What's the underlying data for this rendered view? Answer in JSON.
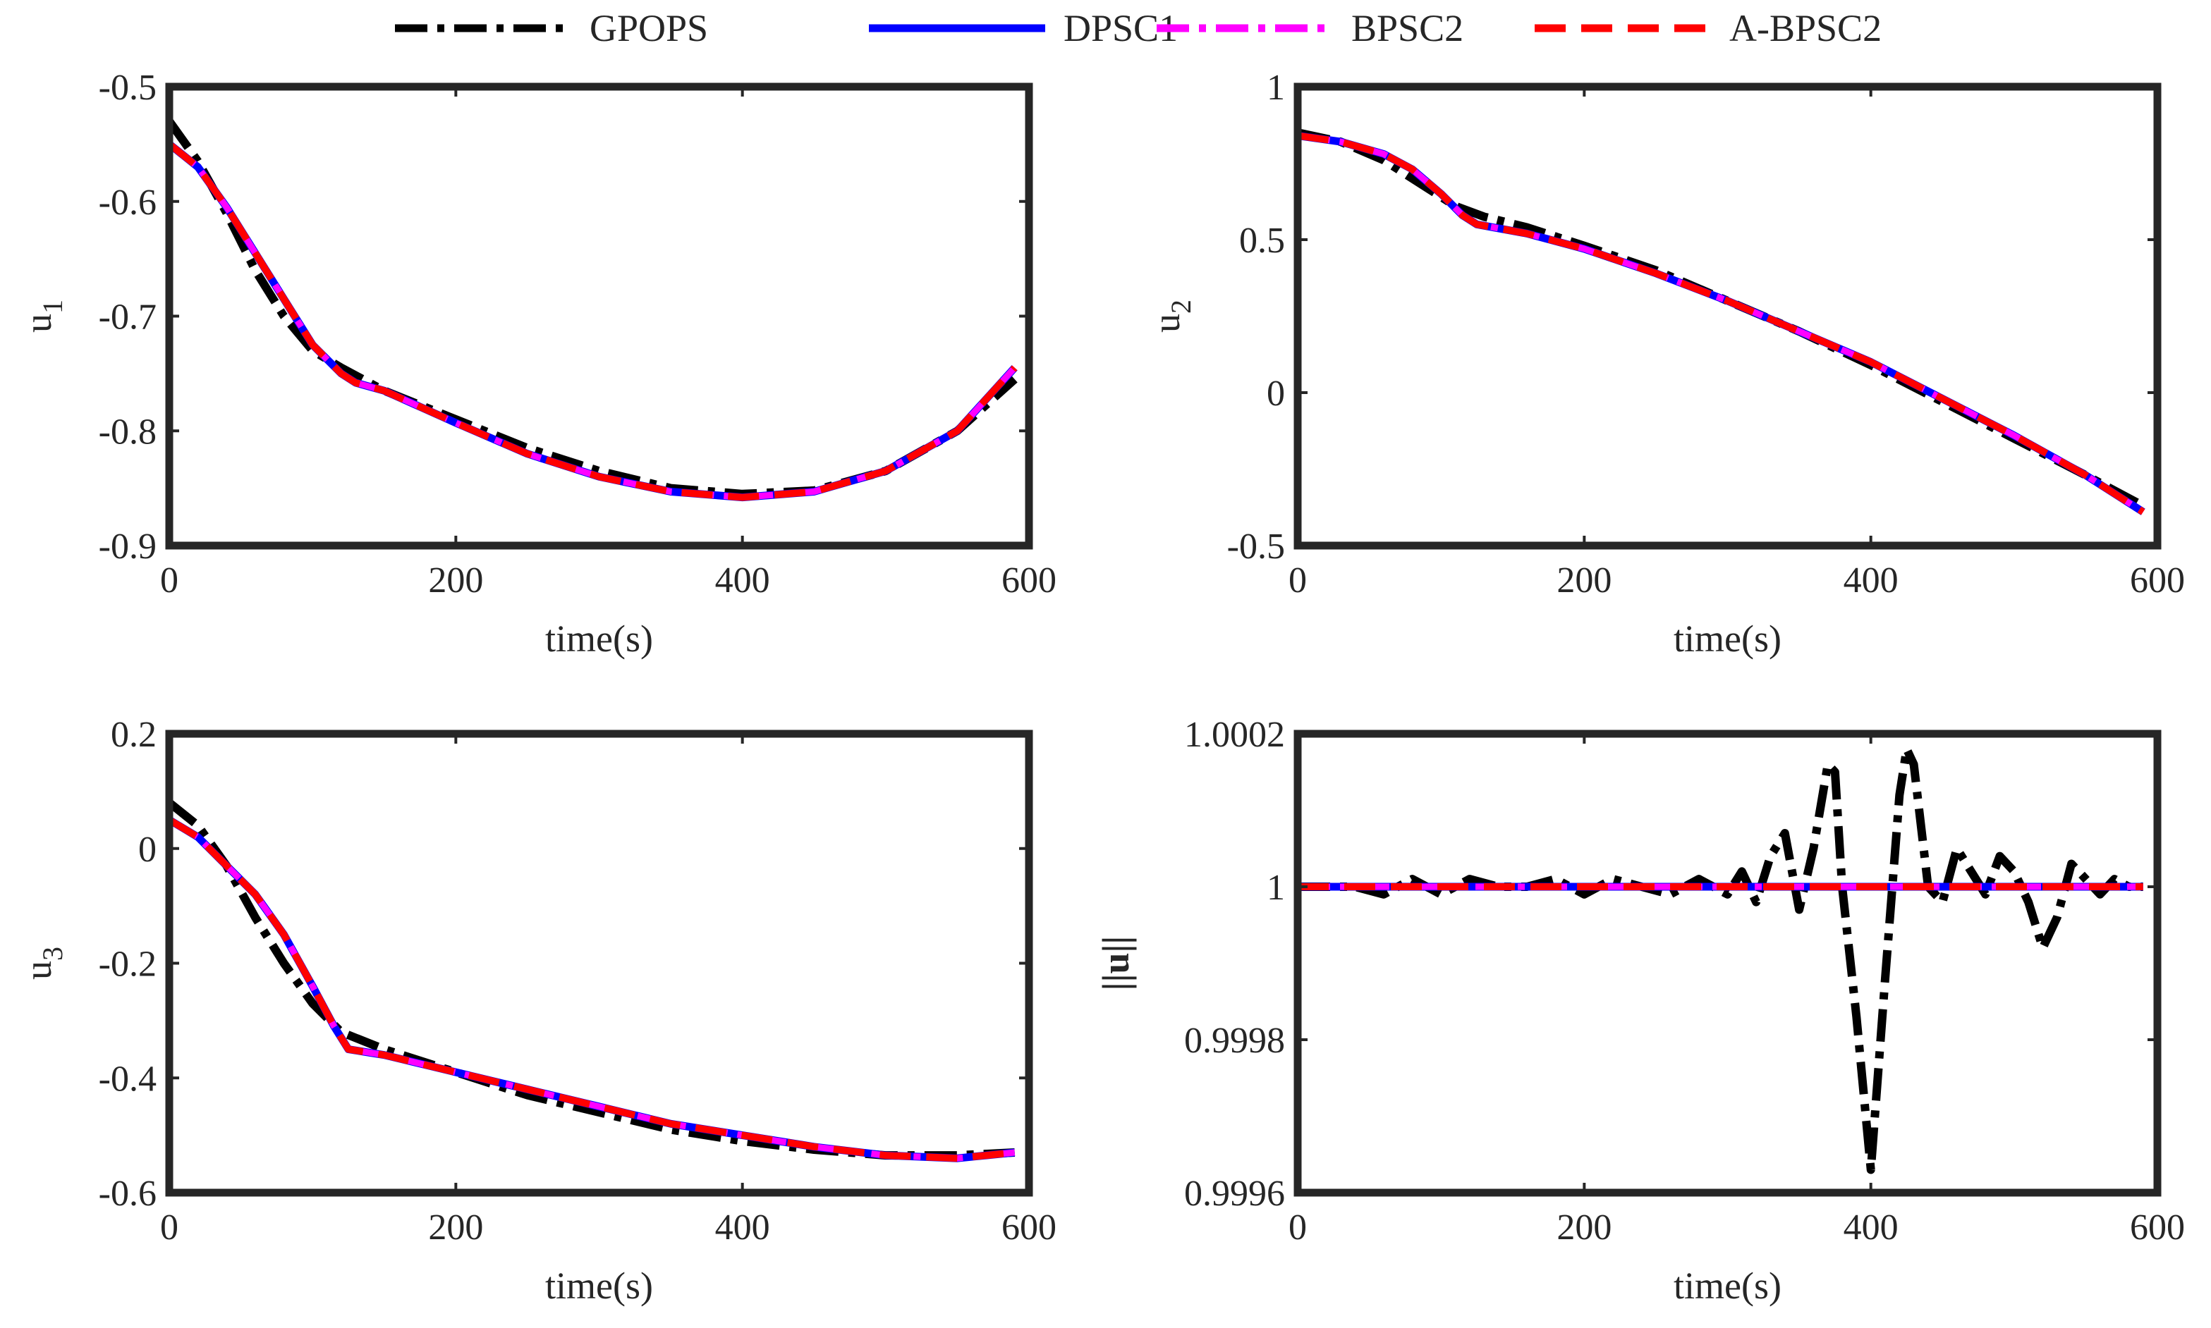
{
  "legend": {
    "entries": [
      {
        "name": "GPOPS",
        "color": "#000000",
        "dash": "dashdot"
      },
      {
        "name": "DPSC1",
        "color": "#0000ff",
        "dash": "solid"
      },
      {
        "name": "BPSC2",
        "color": "#ff00ff",
        "dash": "dashdot"
      },
      {
        "name": "A-BPSC2",
        "color": "#ff0000",
        "dash": "dashed"
      }
    ]
  },
  "chart_data": [
    {
      "type": "line",
      "id": "u1",
      "title": "",
      "xlabel": "time(s)",
      "ylabel": "u",
      "ylabel_sub": "1",
      "xlim": [
        0,
        600
      ],
      "ylim": [
        -0.9,
        -0.5
      ],
      "xticks": [
        0,
        200,
        400,
        600
      ],
      "xtick_labels": [
        "0",
        "200",
        "400",
        "600"
      ],
      "yticks": [
        -0.9,
        -0.8,
        -0.7,
        -0.6,
        -0.5
      ],
      "ytick_labels": [
        "-0.9",
        "-0.8",
        "-0.7",
        "-0.6",
        "-0.5"
      ],
      "series": [
        {
          "name": "GPOPS",
          "x": [
            0,
            20,
            40,
            60,
            80,
            100,
            120,
            150,
            200,
            250,
            300,
            350,
            400,
            450,
            500,
            550,
            590
          ],
          "y": [
            -0.53,
            -0.565,
            -0.61,
            -0.66,
            -0.7,
            -0.73,
            -0.745,
            -0.765,
            -0.79,
            -0.815,
            -0.835,
            -0.85,
            -0.855,
            -0.852,
            -0.835,
            -0.8,
            -0.755
          ]
        },
        {
          "name": "DPSC1",
          "x": [
            0,
            20,
            40,
            60,
            80,
            100,
            120,
            130,
            150,
            200,
            250,
            300,
            350,
            400,
            450,
            500,
            550,
            590
          ],
          "y": [
            -0.55,
            -0.57,
            -0.605,
            -0.645,
            -0.685,
            -0.725,
            -0.75,
            -0.758,
            -0.765,
            -0.793,
            -0.82,
            -0.84,
            -0.853,
            -0.858,
            -0.853,
            -0.835,
            -0.8,
            -0.745
          ]
        },
        {
          "name": "BPSC2",
          "x": [
            0,
            20,
            40,
            60,
            80,
            100,
            120,
            130,
            150,
            200,
            250,
            300,
            350,
            400,
            450,
            500,
            550,
            590
          ],
          "y": [
            -0.55,
            -0.57,
            -0.605,
            -0.645,
            -0.685,
            -0.725,
            -0.75,
            -0.758,
            -0.765,
            -0.793,
            -0.82,
            -0.84,
            -0.853,
            -0.858,
            -0.853,
            -0.835,
            -0.8,
            -0.745
          ]
        },
        {
          "name": "A-BPSC2",
          "x": [
            0,
            20,
            40,
            60,
            80,
            100,
            120,
            130,
            150,
            200,
            250,
            300,
            350,
            400,
            450,
            500,
            550,
            590
          ],
          "y": [
            -0.55,
            -0.57,
            -0.605,
            -0.645,
            -0.685,
            -0.725,
            -0.75,
            -0.758,
            -0.765,
            -0.793,
            -0.82,
            -0.84,
            -0.853,
            -0.858,
            -0.853,
            -0.835,
            -0.8,
            -0.745
          ]
        }
      ]
    },
    {
      "type": "line",
      "id": "u2",
      "title": "",
      "xlabel": "time(s)",
      "ylabel": "u",
      "ylabel_sub": "2",
      "xlim": [
        0,
        600
      ],
      "ylim": [
        -0.5,
        1
      ],
      "xticks": [
        0,
        200,
        400,
        600
      ],
      "xtick_labels": [
        "0",
        "200",
        "400",
        "600"
      ],
      "yticks": [
        -0.5,
        0,
        0.5,
        1
      ],
      "ytick_labels": [
        "-0.5",
        "0",
        "0.5",
        "1"
      ],
      "series": [
        {
          "name": "GPOPS",
          "x": [
            0,
            30,
            60,
            90,
            110,
            130,
            160,
            200,
            250,
            300,
            350,
            400,
            450,
            500,
            550,
            590
          ],
          "y": [
            0.85,
            0.82,
            0.76,
            0.67,
            0.61,
            0.575,
            0.54,
            0.48,
            0.4,
            0.3,
            0.2,
            0.09,
            -0.03,
            -0.15,
            -0.27,
            -0.37
          ]
        },
        {
          "name": "DPSC1",
          "x": [
            0,
            30,
            60,
            80,
            100,
            115,
            125,
            160,
            200,
            250,
            300,
            350,
            400,
            450,
            500,
            550,
            590
          ],
          "y": [
            0.84,
            0.82,
            0.78,
            0.73,
            0.65,
            0.58,
            0.55,
            0.52,
            0.47,
            0.39,
            0.3,
            0.2,
            0.1,
            -0.02,
            -0.14,
            -0.27,
            -0.39
          ]
        },
        {
          "name": "BPSC2",
          "x": [
            0,
            30,
            60,
            80,
            100,
            115,
            125,
            160,
            200,
            250,
            300,
            350,
            400,
            450,
            500,
            550,
            590
          ],
          "y": [
            0.84,
            0.82,
            0.78,
            0.73,
            0.65,
            0.58,
            0.55,
            0.52,
            0.47,
            0.39,
            0.3,
            0.2,
            0.1,
            -0.02,
            -0.14,
            -0.27,
            -0.39
          ]
        },
        {
          "name": "A-BPSC2",
          "x": [
            0,
            30,
            60,
            80,
            100,
            115,
            125,
            160,
            200,
            250,
            300,
            350,
            400,
            450,
            500,
            550,
            590
          ],
          "y": [
            0.84,
            0.82,
            0.78,
            0.73,
            0.65,
            0.58,
            0.55,
            0.52,
            0.47,
            0.39,
            0.3,
            0.2,
            0.1,
            -0.02,
            -0.14,
            -0.27,
            -0.39
          ]
        }
      ]
    },
    {
      "type": "line",
      "id": "u3",
      "title": "",
      "xlabel": "time(s)",
      "ylabel": "u",
      "ylabel_sub": "3",
      "xlim": [
        0,
        600
      ],
      "ylim": [
        -0.6,
        0.2
      ],
      "xticks": [
        0,
        200,
        400,
        600
      ],
      "xtick_labels": [
        "0",
        "200",
        "400",
        "600"
      ],
      "yticks": [
        -0.6,
        -0.4,
        -0.2,
        0,
        0.2
      ],
      "ytick_labels": [
        "-0.6",
        "-0.4",
        "-0.2",
        "0",
        "0.2"
      ],
      "series": [
        {
          "name": "GPOPS",
          "x": [
            0,
            20,
            40,
            60,
            80,
            100,
            120,
            150,
            200,
            250,
            300,
            350,
            400,
            450,
            500,
            550,
            590
          ],
          "y": [
            0.08,
            0.04,
            -0.03,
            -0.12,
            -0.2,
            -0.27,
            -0.32,
            -0.35,
            -0.39,
            -0.43,
            -0.46,
            -0.49,
            -0.51,
            -0.525,
            -0.535,
            -0.535,
            -0.53
          ]
        },
        {
          "name": "DPSC1",
          "x": [
            0,
            20,
            40,
            60,
            80,
            100,
            115,
            125,
            150,
            200,
            250,
            300,
            350,
            400,
            450,
            500,
            550,
            590
          ],
          "y": [
            0.05,
            0.02,
            -0.03,
            -0.08,
            -0.15,
            -0.24,
            -0.31,
            -0.35,
            -0.36,
            -0.39,
            -0.42,
            -0.45,
            -0.48,
            -0.5,
            -0.52,
            -0.535,
            -0.54,
            -0.53
          ]
        },
        {
          "name": "BPSC2",
          "x": [
            0,
            20,
            40,
            60,
            80,
            100,
            115,
            125,
            150,
            200,
            250,
            300,
            350,
            400,
            450,
            500,
            550,
            590
          ],
          "y": [
            0.05,
            0.02,
            -0.03,
            -0.08,
            -0.15,
            -0.24,
            -0.31,
            -0.35,
            -0.36,
            -0.39,
            -0.42,
            -0.45,
            -0.48,
            -0.5,
            -0.52,
            -0.535,
            -0.54,
            -0.53
          ]
        },
        {
          "name": "A-BPSC2",
          "x": [
            0,
            20,
            40,
            60,
            80,
            100,
            115,
            125,
            150,
            200,
            250,
            300,
            350,
            400,
            450,
            500,
            550,
            590
          ],
          "y": [
            0.05,
            0.02,
            -0.03,
            -0.08,
            -0.15,
            -0.24,
            -0.31,
            -0.35,
            -0.36,
            -0.39,
            -0.42,
            -0.45,
            -0.48,
            -0.5,
            -0.52,
            -0.535,
            -0.54,
            -0.53
          ]
        }
      ]
    },
    {
      "type": "line",
      "id": "unorm",
      "title": "",
      "xlabel": "time(s)",
      "ylabel": "||u||",
      "ylabel_sub": "",
      "xlim": [
        0,
        600
      ],
      "ylim": [
        0.9996,
        1.0002
      ],
      "xticks": [
        0,
        200,
        400,
        600
      ],
      "xtick_labels": [
        "0",
        "200",
        "400",
        "600"
      ],
      "yticks": [
        0.9996,
        0.9998,
        1,
        1.0002
      ],
      "ytick_labels": [
        "0.9996",
        "0.9998",
        "1",
        "1.0002"
      ],
      "series": [
        {
          "name": "GPOPS",
          "x": [
            0,
            20,
            40,
            60,
            80,
            100,
            120,
            140,
            160,
            180,
            200,
            220,
            240,
            260,
            280,
            300,
            310,
            320,
            330,
            340,
            350,
            360,
            370,
            375,
            380,
            390,
            400,
            410,
            420,
            425,
            430,
            440,
            450,
            460,
            470,
            480,
            490,
            500,
            510,
            520,
            530,
            540,
            550,
            560,
            570,
            580,
            590
          ],
          "y": [
            1.0,
            1.0,
            1.0,
            0.99999,
            1.00001,
            0.99999,
            1.00001,
            1.0,
            1.0,
            1.00001,
            0.99999,
            1.00001,
            1.0,
            0.99999,
            1.00001,
            0.99999,
            1.00002,
            0.99998,
            1.00004,
            1.00007,
            0.99997,
            1.00005,
            1.00016,
            1.00015,
            1.0,
            0.99983,
            0.99963,
            0.99988,
            1.00012,
            1.00018,
            1.00016,
            1.0,
            0.99998,
            1.00005,
            1.00002,
            0.99999,
            1.00004,
            1.00002,
            0.99998,
            0.99992,
            0.99996,
            1.00003,
            1.00001,
            0.99999,
            1.00001,
            1.0,
            1.0
          ]
        },
        {
          "name": "DPSC1",
          "x": [
            0,
            590
          ],
          "y": [
            1.0,
            1.0
          ]
        },
        {
          "name": "BPSC2",
          "x": [
            0,
            590
          ],
          "y": [
            1.0,
            1.0
          ]
        },
        {
          "name": "A-BPSC2",
          "x": [
            0,
            590
          ],
          "y": [
            1.0,
            1.0
          ]
        }
      ]
    }
  ]
}
